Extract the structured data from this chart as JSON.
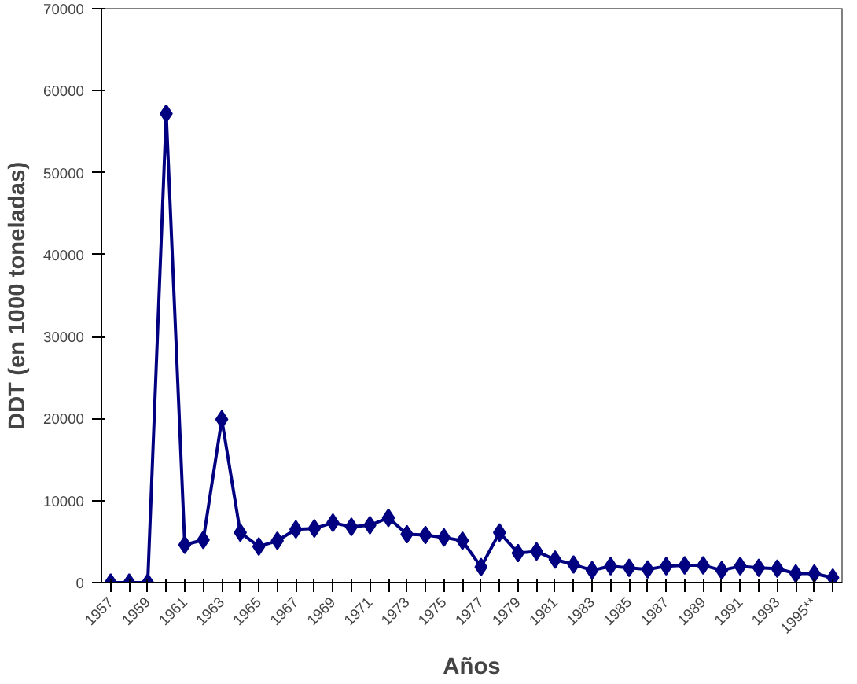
{
  "chart_data": {
    "type": "line",
    "xlabel": "Años",
    "ylabel": "DDT (en 1000 toneladas)",
    "categories": [
      "1957",
      null,
      "1959",
      null,
      "1961",
      null,
      "1963",
      null,
      "1965",
      null,
      "1967",
      null,
      "1969",
      null,
      "1971",
      null,
      "1973",
      null,
      "1975",
      null,
      "1977",
      null,
      "1979",
      null,
      "1981",
      null,
      "1983",
      null,
      "1985",
      null,
      "1987",
      null,
      "1989",
      null,
      "1991",
      null,
      "1993",
      null,
      "1995**",
      null
    ],
    "series": [
      {
        "color": "#000080",
        "values": [
          0,
          0,
          0,
          57200,
          4600,
          5200,
          19900,
          6100,
          4400,
          5100,
          6500,
          6600,
          7300,
          6800,
          7000,
          7900,
          5900,
          5800,
          5500,
          5100,
          1900,
          6100,
          3600,
          3800,
          2800,
          2200,
          1500,
          2000,
          1800,
          1600,
          2000,
          2100,
          2100,
          1500,
          2000,
          1800,
          1700,
          1100,
          1100,
          600
        ]
      }
    ],
    "ylim": [
      0,
      70000
    ],
    "yticks": [
      0,
      10000,
      20000,
      30000,
      40000,
      50000,
      60000,
      70000
    ],
    "marker": "diamond",
    "line_style": "solid"
  }
}
